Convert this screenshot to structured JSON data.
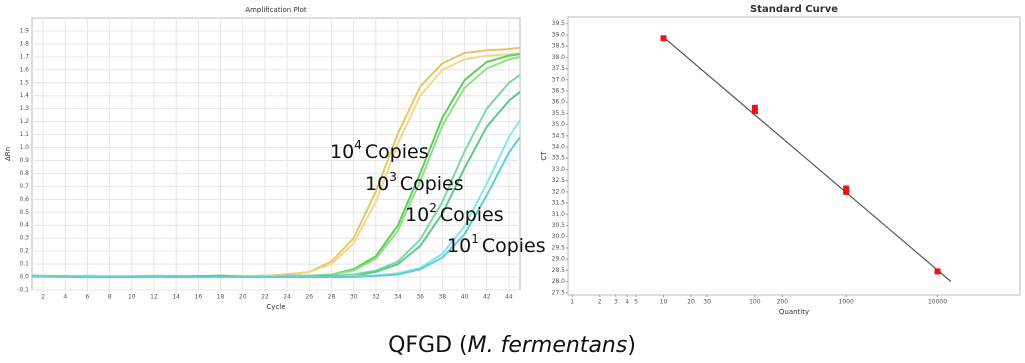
{
  "chart_data": [
    {
      "type": "line",
      "title": "Amplification Plot",
      "x_label": "Cycle",
      "y_label": "ΔRn",
      "grid": true,
      "xlim": [
        1,
        45
      ],
      "ylim": [
        -0.1,
        2.0
      ],
      "xticks": [
        2,
        4,
        6,
        8,
        10,
        12,
        14,
        16,
        18,
        20,
        22,
        24,
        26,
        28,
        30,
        32,
        34,
        36,
        38,
        40,
        42,
        44
      ],
      "yticks": [
        -0.1,
        {
          "value": 0,
          "label": "0.0"
        },
        0.1,
        0.2,
        0.3,
        0.4,
        0.5,
        0.6,
        0.7,
        0.8,
        0.9,
        {
          "value": 1,
          "label": "1.0"
        },
        1.1,
        1.2,
        1.3,
        1.4,
        1.5,
        1.6,
        1.7,
        1.8,
        1.9
      ],
      "x": [
        1,
        6,
        12,
        18,
        22,
        24,
        26,
        28,
        30,
        32,
        34,
        36,
        38,
        40,
        42,
        44,
        45
      ],
      "series": [
        {
          "color": "#e9c46a",
          "values": [
            0.01,
            0.0,
            0.01,
            0.0,
            0.01,
            0.02,
            0.04,
            0.12,
            0.3,
            0.66,
            1.11,
            1.47,
            1.65,
            1.73,
            1.75,
            1.76,
            1.77
          ]
        },
        {
          "color": "#f2d98c",
          "values": [
            0.01,
            0.01,
            0.0,
            0.01,
            0.01,
            0.01,
            0.04,
            0.1,
            0.26,
            0.58,
            1.03,
            1.4,
            1.6,
            1.68,
            1.71,
            1.72,
            1.73
          ]
        },
        {
          "color": "#5fcf5a",
          "values": [
            0.01,
            0.0,
            0.0,
            0.01,
            0.0,
            0.01,
            0.01,
            0.02,
            0.06,
            0.16,
            0.4,
            0.8,
            1.23,
            1.52,
            1.66,
            1.71,
            1.72
          ]
        },
        {
          "color": "#8fe08a",
          "values": [
            0.0,
            0.01,
            0.0,
            0.0,
            0.01,
            0.0,
            0.01,
            0.02,
            0.05,
            0.14,
            0.36,
            0.74,
            1.17,
            1.46,
            1.61,
            1.68,
            1.7
          ]
        },
        {
          "color": "#7ed9a6",
          "values": [
            0.0,
            0.0,
            0.01,
            0.0,
            0.0,
            0.01,
            0.01,
            0.01,
            0.02,
            0.05,
            0.12,
            0.29,
            0.58,
            0.97,
            1.3,
            1.5,
            1.56
          ]
        },
        {
          "color": "#5cc98e",
          "values": [
            0.01,
            0.0,
            0.0,
            0.01,
            0.0,
            0.0,
            0.0,
            0.01,
            0.01,
            0.04,
            0.1,
            0.24,
            0.49,
            0.84,
            1.16,
            1.36,
            1.43
          ]
        },
        {
          "color": "#8ee4e4",
          "values": [
            0.0,
            0.01,
            0.0,
            0.0,
            0.01,
            0.0,
            0.0,
            0.0,
            0.01,
            0.01,
            0.03,
            0.07,
            0.18,
            0.39,
            0.72,
            1.08,
            1.21
          ]
        },
        {
          "color": "#5ccfd8",
          "values": [
            0.01,
            0.0,
            0.0,
            0.0,
            0.0,
            0.0,
            0.0,
            0.0,
            0.0,
            0.01,
            0.02,
            0.06,
            0.15,
            0.33,
            0.63,
            0.96,
            1.08
          ]
        }
      ],
      "annotations": [
        {
          "base": "10",
          "exp": "4",
          "text": "Copies"
        },
        {
          "base": "10",
          "exp": "3",
          "text": "Copies"
        },
        {
          "base": "10",
          "exp": "2",
          "text": "Copies"
        },
        {
          "base": "10",
          "exp": "1",
          "text": "Copies"
        }
      ]
    },
    {
      "type": "scatter",
      "title": "Standard Curve",
      "x_label": "Quantity",
      "y_label": "CT",
      "xscale": "log",
      "grid": false,
      "xlim": [
        0.9,
        80000
      ],
      "ylim": [
        27.4,
        39.8
      ],
      "xticks": [
        1,
        2,
        3,
        4,
        5,
        10,
        20,
        30,
        100,
        200,
        1000,
        10000
      ],
      "yticks": [
        27.5,
        {
          "value": 28,
          "label": "28.0"
        },
        28.5,
        {
          "value": 29,
          "label": "29.0"
        },
        29.5,
        {
          "value": 30,
          "label": "30.0"
        },
        30.5,
        {
          "value": 31,
          "label": "31.0"
        },
        31.5,
        {
          "value": 32,
          "label": "32.0"
        },
        32.5,
        {
          "value": 33,
          "label": "33.0"
        },
        33.5,
        {
          "value": 34,
          "label": "34.0"
        },
        34.5,
        {
          "value": 35,
          "label": "35.0"
        },
        35.5,
        {
          "value": 36,
          "label": "36.0"
        },
        36.5,
        {
          "value": 37,
          "label": "37.0"
        },
        37.5,
        {
          "value": 38,
          "label": "38.0"
        },
        38.5,
        {
          "value": 39,
          "label": "39.0"
        },
        39.5
      ],
      "color": "#e8141c",
      "line_color": "#555555",
      "points": {
        "x": [
          10,
          100,
          100,
          1000,
          1000,
          10000
        ],
        "y": [
          38.85,
          35.6,
          35.75,
          32.0,
          32.15,
          28.45
        ]
      },
      "fit": {
        "x": [
          10,
          14000
        ],
        "y": [
          38.9,
          28.0
        ]
      }
    }
  ],
  "caption": {
    "text": "QFGD (",
    "italic": "M. fermentans",
    "end": ")"
  }
}
